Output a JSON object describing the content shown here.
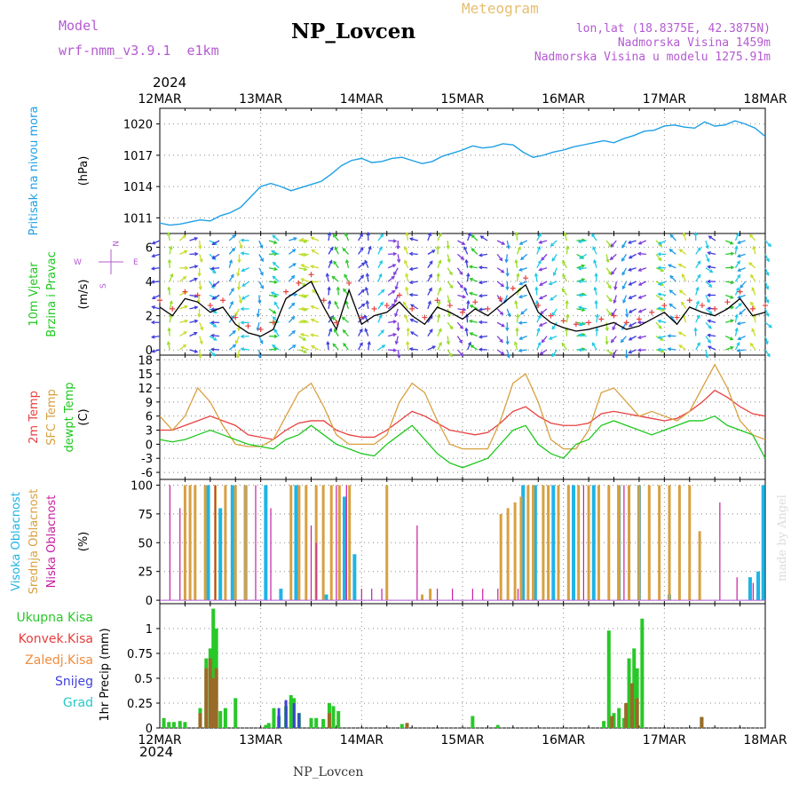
{
  "header": {
    "model_label": "Model",
    "model_name": "wrf-nmm_v3.9.1  e1km",
    "title": "NP_Lovcen",
    "meteogram": "Meteogram",
    "lonlat": "lon,lat (18.8375E, 42.3875N)",
    "alt1": "Nadmorska Visina 1459m",
    "alt2": "Nadmorska Visina u modelu 1275.91m",
    "year_top": "2024",
    "year_bottom": "2024",
    "footer": "NP_Lovcen",
    "watermark": "made by Angel"
  },
  "colors": {
    "pressure": "#1ea0e6",
    "temp2m": "#e84040",
    "sfc": "#d8a040",
    "dew": "#1ec81e",
    "high": "#1eb4e6",
    "mid": "#d8a040",
    "low": "#c81ea0",
    "precip_total": "#28c828",
    "precip_conv": "#e83c3c",
    "precip_frz": "#f08c3c",
    "precip_snow": "#4040e0",
    "precip_graupel": "#28c8c8",
    "header_purple": "#b45ad2",
    "header_gold": "#e6be6e"
  },
  "chart_data": [
    {
      "type": "line",
      "name": "pressure",
      "x_labels": [
        "12MAR",
        "13MAR",
        "14MAR",
        "15MAR",
        "16MAR",
        "17MAR",
        "18MAR"
      ],
      "ylabel": "(hPa)",
      "side_label": "Pritisak na nivou mora",
      "yticks": [
        1011,
        1014,
        1017,
        1020
      ],
      "ylim": [
        1009.5,
        1021.5
      ],
      "x": [
        0,
        0.1,
        0.2,
        0.3,
        0.4,
        0.5,
        0.6,
        0.7,
        0.8,
        0.9,
        1.0,
        1.1,
        1.2,
        1.3,
        1.4,
        1.5,
        1.6,
        1.7,
        1.8,
        1.9,
        2.0,
        2.1,
        2.2,
        2.3,
        2.4,
        2.5,
        2.6,
        2.7,
        2.8,
        2.9,
        3.0,
        3.1,
        3.2,
        3.3,
        3.4,
        3.5,
        3.6,
        3.7,
        3.8,
        3.9,
        4.0,
        4.1,
        4.2,
        4.3,
        4.4,
        4.5,
        4.6,
        4.7,
        4.8,
        4.9,
        5.0,
        5.1,
        5.2,
        5.3,
        5.4,
        5.5,
        5.6,
        5.7,
        5.8,
        5.9,
        6.0
      ],
      "values": [
        1010.5,
        1010.3,
        1010.4,
        1010.6,
        1010.8,
        1010.7,
        1011.2,
        1011.5,
        1012.0,
        1013.0,
        1014.0,
        1014.3,
        1014.0,
        1013.6,
        1013.9,
        1014.2,
        1014.5,
        1015.2,
        1016.0,
        1016.5,
        1016.7,
        1016.3,
        1016.4,
        1016.7,
        1016.8,
        1016.5,
        1016.2,
        1016.4,
        1016.9,
        1017.2,
        1017.5,
        1017.9,
        1017.7,
        1017.8,
        1018.1,
        1018.0,
        1017.3,
        1016.8,
        1017.0,
        1017.3,
        1017.5,
        1017.8,
        1018.0,
        1018.2,
        1018.4,
        1018.2,
        1018.6,
        1018.9,
        1019.3,
        1019.4,
        1019.8,
        1019.9,
        1019.7,
        1019.6,
        1020.2,
        1019.8,
        1019.9,
        1020.3,
        1020.0,
        1019.6,
        1018.8
      ]
    },
    {
      "type": "line",
      "name": "wind",
      "x_labels": [
        "12MAR",
        "13MAR",
        "14MAR",
        "15MAR",
        "16MAR",
        "17MAR",
        "18MAR"
      ],
      "ylabel": "(m/s)",
      "side_label_1": "10m Vjetar",
      "side_label_2": "Brzina i Pravac",
      "compass": {
        "n": "N",
        "s": "S",
        "w": "W",
        "e": "E"
      },
      "yticks": [
        0,
        2,
        4,
        6
      ],
      "ylim": [
        -0.3,
        6.8
      ],
      "x": [
        0,
        0.125,
        0.25,
        0.375,
        0.5,
        0.625,
        0.75,
        0.875,
        1.0,
        1.125,
        1.25,
        1.375,
        1.5,
        1.625,
        1.75,
        1.875,
        2.0,
        2.125,
        2.25,
        2.375,
        2.5,
        2.625,
        2.75,
        2.875,
        3.0,
        3.125,
        3.25,
        3.375,
        3.5,
        3.625,
        3.75,
        3.875,
        4.0,
        4.125,
        4.25,
        4.375,
        4.5,
        4.625,
        4.75,
        4.875,
        5.0,
        5.125,
        5.25,
        5.375,
        5.5,
        5.625,
        5.75,
        5.875,
        6.0
      ],
      "values": [
        2.5,
        2.0,
        3.0,
        2.8,
        2.2,
        2.5,
        1.5,
        1.0,
        0.8,
        1.2,
        3.0,
        3.5,
        4.0,
        2.5,
        1.2,
        3.5,
        1.5,
        2.0,
        2.2,
        2.8,
        2.0,
        1.5,
        2.5,
        2.2,
        1.8,
        2.4,
        2.0,
        2.6,
        3.2,
        3.8,
        2.2,
        1.6,
        1.3,
        1.1,
        1.2,
        1.4,
        1.6,
        1.2,
        1.4,
        1.8,
        2.2,
        1.5,
        2.5,
        2.2,
        2.0,
        2.4,
        3.0,
        2.0,
        2.2
      ]
    },
    {
      "type": "line",
      "name": "temperature",
      "x_labels": [
        "12MAR",
        "13MAR",
        "14MAR",
        "15MAR",
        "16MAR",
        "17MAR",
        "18MAR"
      ],
      "ylabel": "(C)",
      "side_labels": [
        "2m Temp",
        "SFC Temp",
        "dewpt Temp"
      ],
      "yticks": [
        -6,
        -3,
        0,
        3,
        6,
        9,
        12,
        15,
        18
      ],
      "ylim": [
        -7.5,
        19
      ],
      "x": [
        0,
        0.125,
        0.25,
        0.375,
        0.5,
        0.625,
        0.75,
        0.875,
        1.0,
        1.125,
        1.25,
        1.375,
        1.5,
        1.625,
        1.75,
        1.875,
        2.0,
        2.125,
        2.25,
        2.375,
        2.5,
        2.625,
        2.75,
        2.875,
        3.0,
        3.125,
        3.25,
        3.375,
        3.5,
        3.625,
        3.75,
        3.875,
        4.0,
        4.125,
        4.25,
        4.375,
        4.5,
        4.625,
        4.75,
        4.875,
        5.0,
        5.125,
        5.25,
        5.375,
        5.5,
        5.625,
        5.75,
        5.875,
        6.0
      ],
      "series": [
        {
          "name": "2m Temp",
          "color_key": "temp2m",
          "values": [
            3,
            3,
            4,
            5,
            6,
            5,
            4,
            2,
            1.5,
            1,
            3,
            4.5,
            5,
            5,
            3,
            2,
            1.5,
            1.5,
            3,
            5,
            7,
            6,
            4.5,
            3,
            2.5,
            2,
            2.5,
            4.5,
            7,
            8,
            6,
            4.5,
            4,
            4,
            4.5,
            6.5,
            7,
            6.5,
            6,
            5.5,
            5,
            5.5,
            7,
            9,
            11.5,
            10,
            8,
            6.5,
            6
          ]
        },
        {
          "name": "SFC Temp",
          "color_key": "sfc",
          "values": [
            6,
            3,
            6,
            12,
            9,
            4,
            0,
            -0.5,
            -0.5,
            1,
            6,
            11,
            13,
            8,
            2,
            0,
            0,
            0,
            2,
            9,
            13,
            11,
            5,
            0,
            -1,
            -1,
            -1,
            5,
            13,
            15,
            9,
            1,
            -1,
            -1,
            3,
            11,
            12,
            9,
            6,
            7,
            6,
            5,
            7,
            12,
            17,
            12,
            5,
            2,
            1
          ]
        },
        {
          "name": "dewpt Temp",
          "color_key": "dew",
          "values": [
            1,
            0.5,
            1,
            2,
            3,
            2,
            1,
            0,
            -0.5,
            -1,
            1,
            2,
            4,
            2,
            0,
            -1,
            -2,
            -2.5,
            0,
            2,
            4,
            1,
            -2,
            -4,
            -5,
            -4,
            -3,
            0,
            3,
            4,
            0,
            -2,
            -3,
            0,
            1,
            4,
            5,
            4,
            3,
            2,
            3,
            4,
            5,
            5,
            6,
            4,
            3,
            2,
            -3
          ]
        }
      ]
    },
    {
      "type": "bar",
      "name": "clouds",
      "x_labels": [
        "12MAR",
        "13MAR",
        "14MAR",
        "15MAR",
        "16MAR",
        "17MAR",
        "18MAR"
      ],
      "ylabel": "(%)",
      "side_labels": [
        "Visoka Oblacnost",
        "Srednja Oblacnost",
        "Niska Oblacnost"
      ],
      "yticks": [
        0,
        25,
        50,
        75,
        100
      ],
      "ylim": [
        -3,
        105
      ],
      "series": [
        {
          "name": "Visoka Oblacnost",
          "color_key": "high",
          "x": [
            0.48,
            0.6,
            0.72,
            0.85,
            1.05,
            1.2,
            1.35,
            1.65,
            1.83,
            1.93,
            3.6,
            3.72,
            3.9,
            4.1,
            4.3,
            4.55,
            4.75,
            5.05,
            5.85,
            5.93,
            5.98
          ],
          "values": [
            100,
            80,
            100,
            100,
            100,
            10,
            100,
            5,
            90,
            40,
            100,
            100,
            100,
            100,
            100,
            100,
            100,
            5,
            20,
            25,
            100
          ]
        },
        {
          "name": "Srednja Oblacnost",
          "color_key": "mid",
          "x": [
            0.25,
            0.3,
            0.35,
            0.45,
            0.55,
            0.65,
            0.75,
            0.85,
            1.3,
            1.38,
            1.45,
            1.55,
            1.62,
            1.7,
            1.78,
            1.88,
            2.25,
            2.6,
            2.68,
            3.38,
            3.45,
            3.52,
            3.58,
            3.65,
            3.7,
            3.8,
            3.85,
            3.95,
            4.05,
            4.15,
            4.25,
            4.35,
            4.45,
            4.55,
            4.65,
            4.75,
            4.85,
            4.95,
            5.05,
            5.15,
            5.25,
            5.35
          ],
          "values": [
            100,
            100,
            100,
            100,
            100,
            100,
            100,
            100,
            100,
            100,
            100,
            100,
            100,
            100,
            100,
            100,
            100,
            5,
            10,
            75,
            80,
            85,
            90,
            100,
            100,
            100,
            100,
            100,
            100,
            100,
            100,
            100,
            100,
            100,
            100,
            100,
            100,
            100,
            100,
            100,
            100,
            60
          ]
        },
        {
          "name": "Niska Oblacnost",
          "color_key": "low",
          "x": [
            0.1,
            0.2,
            0.55,
            0.95,
            1.1,
            1.5,
            1.55,
            1.75,
            1.85,
            2.0,
            2.1,
            2.2,
            2.55,
            2.75,
            2.9,
            3.1,
            3.2,
            3.35,
            3.55,
            4.2,
            4.6,
            5.55,
            5.72,
            5.88
          ],
          "values": [
            100,
            80,
            100,
            100,
            80,
            65,
            50,
            100,
            100,
            10,
            10,
            10,
            65,
            10,
            10,
            10,
            10,
            10,
            10,
            100,
            100,
            85,
            20,
            15
          ]
        }
      ]
    },
    {
      "type": "bar",
      "name": "precip",
      "x_labels": [
        "12MAR",
        "13MAR",
        "14MAR",
        "15MAR",
        "16MAR",
        "17MAR",
        "18MAR"
      ],
      "ylabel": "1hr Precip (mm)",
      "side_labels": [
        "Ukupna Kisa",
        "Konvek.Kisa",
        "Zaledj.Kisa",
        "Snijeg",
        "Grad"
      ],
      "yticks": [
        "0",
        "0.25",
        "0.5",
        "0.75",
        "1"
      ],
      "ytick_values": [
        0,
        0.25,
        0.5,
        0.75,
        1
      ],
      "ylim": [
        0,
        1.25
      ],
      "series": [
        {
          "name": "Ukupna Kisa",
          "color_key": "precip_total",
          "x": [
            0.04,
            0.09,
            0.14,
            0.2,
            0.25,
            0.4,
            0.46,
            0.5,
            0.53,
            0.56,
            0.6,
            0.65,
            0.75,
            1.05,
            1.08,
            1.13,
            1.18,
            1.25,
            1.3,
            1.33,
            1.38,
            1.5,
            1.55,
            1.62,
            1.68,
            1.72,
            1.77,
            2.4,
            2.45,
            3.1,
            3.35,
            4.4,
            4.45,
            4.5,
            4.55,
            4.6,
            4.65,
            4.7,
            4.73,
            4.78,
            5.37
          ],
          "values": [
            0.1,
            0.06,
            0.06,
            0.07,
            0.06,
            0.2,
            0.7,
            0.8,
            1.2,
            1.0,
            0.17,
            0.2,
            0.3,
            0.03,
            0.05,
            0.2,
            0.12,
            0.22,
            0.33,
            0.3,
            0.15,
            0.1,
            0.1,
            0.09,
            0.25,
            0.22,
            0.17,
            0.04,
            0.05,
            0.12,
            0.03,
            0.07,
            0.98,
            0.15,
            0.2,
            0.1,
            0.7,
            0.8,
            0.6,
            1.1,
            0.11
          ]
        },
        {
          "name": "Konvek.Kisa",
          "color_key": "precip_conv",
          "x": [
            0.4,
            0.46,
            0.5,
            0.53,
            0.56,
            1.68,
            2.45,
            4.48,
            4.62,
            4.68,
            4.73,
            5.37
          ],
          "values": [
            0.15,
            0.6,
            0.7,
            0.5,
            0.6,
            0.15,
            0.05,
            0.12,
            0.25,
            0.45,
            0.3,
            0.11
          ]
        },
        {
          "name": "Snijeg",
          "color_key": "precip_snow",
          "x": [
            1.18,
            1.25,
            1.33,
            1.38
          ],
          "values": [
            0.2,
            0.28,
            0.25,
            0.15
          ]
        }
      ]
    }
  ]
}
